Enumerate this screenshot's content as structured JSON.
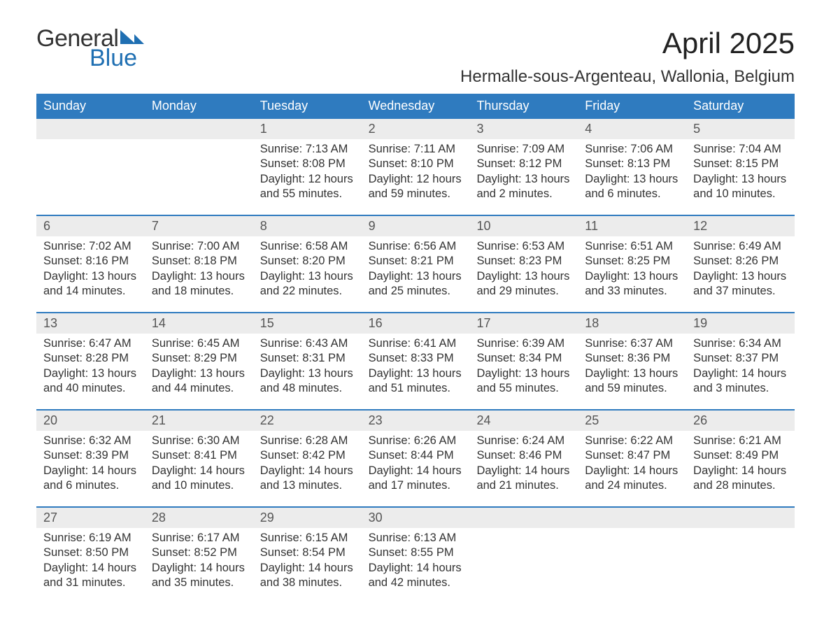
{
  "branding": {
    "word1": "General",
    "word2": "Blue",
    "logo_shape_color": "#1f6fb2",
    "text1_color": "#333333",
    "text2_color": "#1f6fb2"
  },
  "title": {
    "month": "April 2025",
    "location": "Hermalle-sous-Argenteau, Wallonia, Belgium"
  },
  "style": {
    "header_bg": "#2f7bbf",
    "header_text": "#ffffff",
    "daynum_bg": "#ececec",
    "daynum_text": "#555555",
    "body_text": "#333333",
    "week_border": "#2f7bbf",
    "header_fontsize": 18,
    "daynum_fontsize": 18,
    "body_fontsize": 16.5,
    "title_fontsize": 42,
    "location_fontsize": 24
  },
  "day_headers": [
    "Sunday",
    "Monday",
    "Tuesday",
    "Wednesday",
    "Thursday",
    "Friday",
    "Saturday"
  ],
  "weeks": [
    {
      "days": [
        {
          "num": "",
          "sunrise": "",
          "sunset": "",
          "daylight": ""
        },
        {
          "num": "",
          "sunrise": "",
          "sunset": "",
          "daylight": ""
        },
        {
          "num": "1",
          "sunrise": "Sunrise: 7:13 AM",
          "sunset": "Sunset: 8:08 PM",
          "daylight": "Daylight: 12 hours and 55 minutes."
        },
        {
          "num": "2",
          "sunrise": "Sunrise: 7:11 AM",
          "sunset": "Sunset: 8:10 PM",
          "daylight": "Daylight: 12 hours and 59 minutes."
        },
        {
          "num": "3",
          "sunrise": "Sunrise: 7:09 AM",
          "sunset": "Sunset: 8:12 PM",
          "daylight": "Daylight: 13 hours and 2 minutes."
        },
        {
          "num": "4",
          "sunrise": "Sunrise: 7:06 AM",
          "sunset": "Sunset: 8:13 PM",
          "daylight": "Daylight: 13 hours and 6 minutes."
        },
        {
          "num": "5",
          "sunrise": "Sunrise: 7:04 AM",
          "sunset": "Sunset: 8:15 PM",
          "daylight": "Daylight: 13 hours and 10 minutes."
        }
      ]
    },
    {
      "days": [
        {
          "num": "6",
          "sunrise": "Sunrise: 7:02 AM",
          "sunset": "Sunset: 8:16 PM",
          "daylight": "Daylight: 13 hours and 14 minutes."
        },
        {
          "num": "7",
          "sunrise": "Sunrise: 7:00 AM",
          "sunset": "Sunset: 8:18 PM",
          "daylight": "Daylight: 13 hours and 18 minutes."
        },
        {
          "num": "8",
          "sunrise": "Sunrise: 6:58 AM",
          "sunset": "Sunset: 8:20 PM",
          "daylight": "Daylight: 13 hours and 22 minutes."
        },
        {
          "num": "9",
          "sunrise": "Sunrise: 6:56 AM",
          "sunset": "Sunset: 8:21 PM",
          "daylight": "Daylight: 13 hours and 25 minutes."
        },
        {
          "num": "10",
          "sunrise": "Sunrise: 6:53 AM",
          "sunset": "Sunset: 8:23 PM",
          "daylight": "Daylight: 13 hours and 29 minutes."
        },
        {
          "num": "11",
          "sunrise": "Sunrise: 6:51 AM",
          "sunset": "Sunset: 8:25 PM",
          "daylight": "Daylight: 13 hours and 33 minutes."
        },
        {
          "num": "12",
          "sunrise": "Sunrise: 6:49 AM",
          "sunset": "Sunset: 8:26 PM",
          "daylight": "Daylight: 13 hours and 37 minutes."
        }
      ]
    },
    {
      "days": [
        {
          "num": "13",
          "sunrise": "Sunrise: 6:47 AM",
          "sunset": "Sunset: 8:28 PM",
          "daylight": "Daylight: 13 hours and 40 minutes."
        },
        {
          "num": "14",
          "sunrise": "Sunrise: 6:45 AM",
          "sunset": "Sunset: 8:29 PM",
          "daylight": "Daylight: 13 hours and 44 minutes."
        },
        {
          "num": "15",
          "sunrise": "Sunrise: 6:43 AM",
          "sunset": "Sunset: 8:31 PM",
          "daylight": "Daylight: 13 hours and 48 minutes."
        },
        {
          "num": "16",
          "sunrise": "Sunrise: 6:41 AM",
          "sunset": "Sunset: 8:33 PM",
          "daylight": "Daylight: 13 hours and 51 minutes."
        },
        {
          "num": "17",
          "sunrise": "Sunrise: 6:39 AM",
          "sunset": "Sunset: 8:34 PM",
          "daylight": "Daylight: 13 hours and 55 minutes."
        },
        {
          "num": "18",
          "sunrise": "Sunrise: 6:37 AM",
          "sunset": "Sunset: 8:36 PM",
          "daylight": "Daylight: 13 hours and 59 minutes."
        },
        {
          "num": "19",
          "sunrise": "Sunrise: 6:34 AM",
          "sunset": "Sunset: 8:37 PM",
          "daylight": "Daylight: 14 hours and 3 minutes."
        }
      ]
    },
    {
      "days": [
        {
          "num": "20",
          "sunrise": "Sunrise: 6:32 AM",
          "sunset": "Sunset: 8:39 PM",
          "daylight": "Daylight: 14 hours and 6 minutes."
        },
        {
          "num": "21",
          "sunrise": "Sunrise: 6:30 AM",
          "sunset": "Sunset: 8:41 PM",
          "daylight": "Daylight: 14 hours and 10 minutes."
        },
        {
          "num": "22",
          "sunrise": "Sunrise: 6:28 AM",
          "sunset": "Sunset: 8:42 PM",
          "daylight": "Daylight: 14 hours and 13 minutes."
        },
        {
          "num": "23",
          "sunrise": "Sunrise: 6:26 AM",
          "sunset": "Sunset: 8:44 PM",
          "daylight": "Daylight: 14 hours and 17 minutes."
        },
        {
          "num": "24",
          "sunrise": "Sunrise: 6:24 AM",
          "sunset": "Sunset: 8:46 PM",
          "daylight": "Daylight: 14 hours and 21 minutes."
        },
        {
          "num": "25",
          "sunrise": "Sunrise: 6:22 AM",
          "sunset": "Sunset: 8:47 PM",
          "daylight": "Daylight: 14 hours and 24 minutes."
        },
        {
          "num": "26",
          "sunrise": "Sunrise: 6:21 AM",
          "sunset": "Sunset: 8:49 PM",
          "daylight": "Daylight: 14 hours and 28 minutes."
        }
      ]
    },
    {
      "days": [
        {
          "num": "27",
          "sunrise": "Sunrise: 6:19 AM",
          "sunset": "Sunset: 8:50 PM",
          "daylight": "Daylight: 14 hours and 31 minutes."
        },
        {
          "num": "28",
          "sunrise": "Sunrise: 6:17 AM",
          "sunset": "Sunset: 8:52 PM",
          "daylight": "Daylight: 14 hours and 35 minutes."
        },
        {
          "num": "29",
          "sunrise": "Sunrise: 6:15 AM",
          "sunset": "Sunset: 8:54 PM",
          "daylight": "Daylight: 14 hours and 38 minutes."
        },
        {
          "num": "30",
          "sunrise": "Sunrise: 6:13 AM",
          "sunset": "Sunset: 8:55 PM",
          "daylight": "Daylight: 14 hours and 42 minutes."
        },
        {
          "num": "",
          "sunrise": "",
          "sunset": "",
          "daylight": ""
        },
        {
          "num": "",
          "sunrise": "",
          "sunset": "",
          "daylight": ""
        },
        {
          "num": "",
          "sunrise": "",
          "sunset": "",
          "daylight": ""
        }
      ]
    }
  ]
}
